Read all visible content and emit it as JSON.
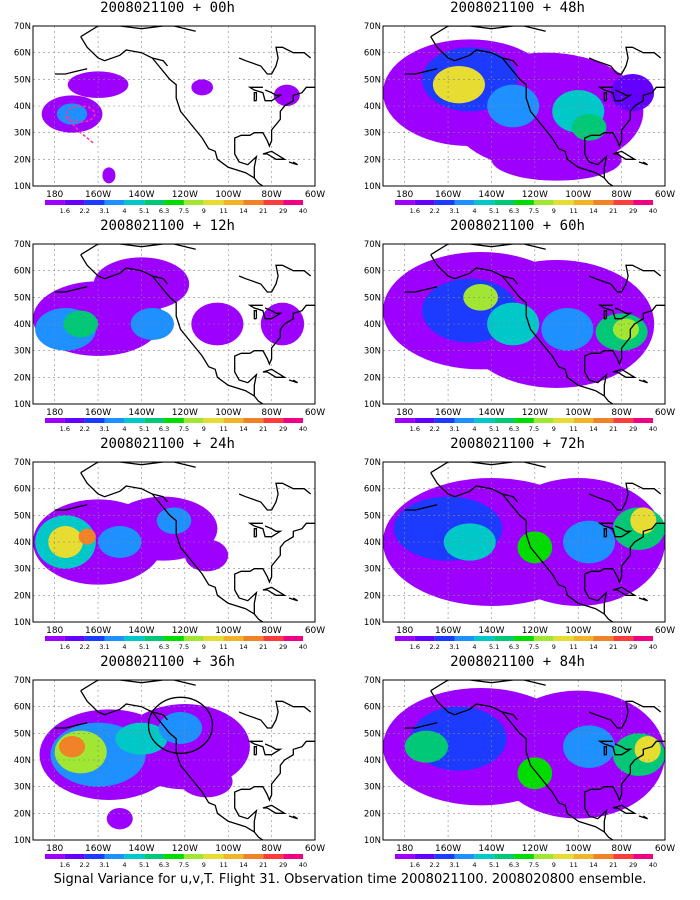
{
  "caption": "Signal Variance for u,v,T. Flight 31. Observation time 2008021100. 2008020800 ensemble.",
  "axes": {
    "lat_labels": [
      "70N",
      "60N",
      "50N",
      "40N",
      "30N",
      "20N",
      "10N"
    ],
    "lon_labels": [
      "180",
      "160W",
      "140W",
      "120W",
      "100W",
      "80W",
      "60W"
    ]
  },
  "colorbar": {
    "levels": [
      "1.6",
      "2.2",
      "3.1",
      "4",
      "5.1",
      "6.3",
      "7.5",
      "9",
      "11",
      "14",
      "21",
      "29",
      "40"
    ],
    "colors": [
      "#9d00ff",
      "#6400ff",
      "#1d3bff",
      "#1e90ff",
      "#00c8c8",
      "#00c877",
      "#00dc00",
      "#a0e632",
      "#e6dc32",
      "#f0b428",
      "#f08228",
      "#fa3c3c",
      "#f00082"
    ]
  },
  "panels": [
    {
      "id": "00h",
      "title": "2008021100 + 00h",
      "col": 0,
      "row": 0
    },
    {
      "id": "48h",
      "title": "2008021100 + 48h",
      "col": 1,
      "row": 0
    },
    {
      "id": "12h",
      "title": "2008021100 + 12h",
      "col": 0,
      "row": 1
    },
    {
      "id": "60h",
      "title": "2008021100 + 60h",
      "col": 1,
      "row": 1
    },
    {
      "id": "24h",
      "title": "2008021100 + 24h",
      "col": 0,
      "row": 2
    },
    {
      "id": "72h",
      "title": "2008021100 + 72h",
      "col": 1,
      "row": 2
    },
    {
      "id": "36h",
      "title": "2008021100 + 36h",
      "col": 0,
      "row": 3
    },
    {
      "id": "84h",
      "title": "2008021100 + 84h",
      "col": 1,
      "row": 3
    }
  ]
}
